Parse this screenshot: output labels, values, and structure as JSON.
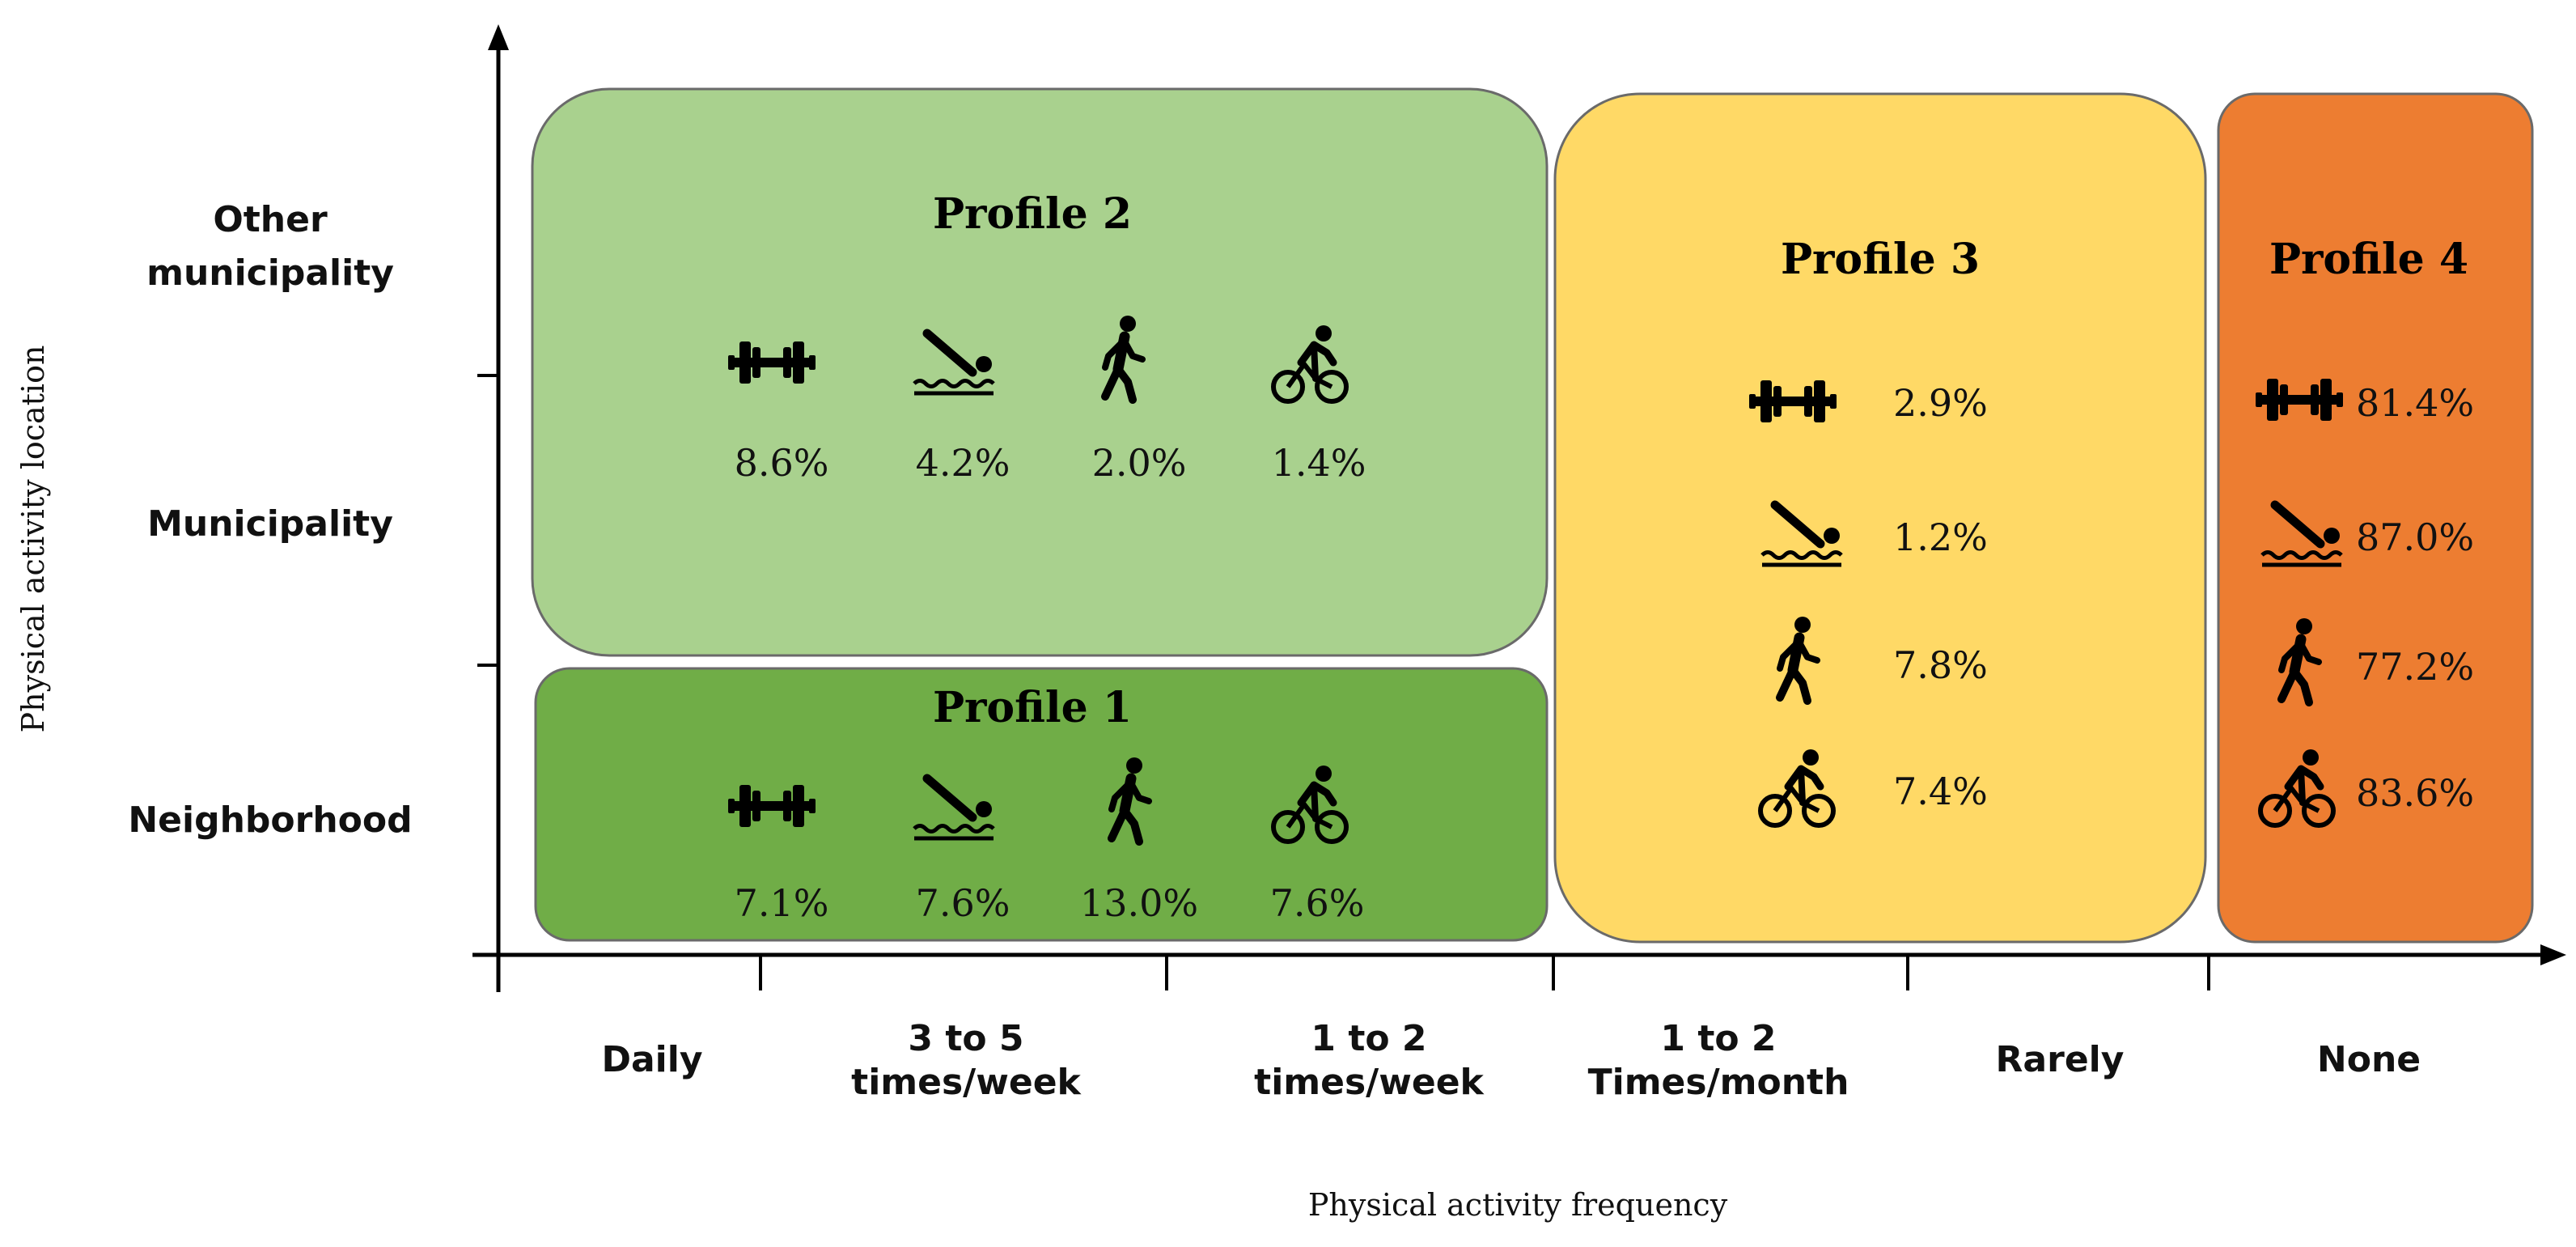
{
  "axes": {
    "x_label": "Physical activity frequency",
    "y_label": "Physical activity location",
    "x_ticks": [
      "Daily",
      "3 to 5\ntimes/week",
      "1 to 2\ntimes/week",
      "1 to 2\nTimes/month",
      "Rarely",
      "None"
    ],
    "y_ticks": [
      "Other\nmunicipality",
      "Municipality",
      "Neighborhood"
    ]
  },
  "profiles": [
    {
      "title": "Profile 2",
      "color": "#a9d18e",
      "items": [
        {
          "icon": "dumbbell-icon",
          "value": "8.6%"
        },
        {
          "icon": "swimming-icon",
          "value": "4.2%"
        },
        {
          "icon": "walking-icon",
          "value": "2.0%"
        },
        {
          "icon": "cycling-icon",
          "value": "1.4%"
        }
      ]
    },
    {
      "title": "Profile 1",
      "color": "#70ad47",
      "items": [
        {
          "icon": "dumbbell-icon",
          "value": "7.1%"
        },
        {
          "icon": "swimming-icon",
          "value": "7.6%"
        },
        {
          "icon": "walking-icon",
          "value": "13.0%"
        },
        {
          "icon": "cycling-icon",
          "value": "7.6%"
        }
      ]
    },
    {
      "title": "Profile 3",
      "color": "#ffd966",
      "items": [
        {
          "icon": "dumbbell-icon",
          "value": "2.9%"
        },
        {
          "icon": "swimming-icon",
          "value": "1.2%"
        },
        {
          "icon": "walking-icon",
          "value": "7.8%"
        },
        {
          "icon": "cycling-icon",
          "value": "7.4%"
        }
      ]
    },
    {
      "title": "Profile 4",
      "color": "#ed7d31",
      "items": [
        {
          "icon": "dumbbell-icon",
          "value": "81.4%"
        },
        {
          "icon": "swimming-icon",
          "value": "87.0%"
        },
        {
          "icon": "walking-icon",
          "value": "77.2%"
        },
        {
          "icon": "cycling-icon",
          "value": "83.6%"
        }
      ]
    }
  ]
}
